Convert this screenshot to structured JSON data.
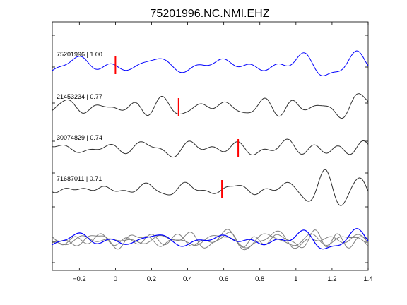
{
  "chart_data": {
    "type": "line",
    "title": "75201996.NC.NMI.EHZ",
    "xlabel": "",
    "ylabel": "",
    "xlim": [
      -0.35,
      1.4
    ],
    "xticks": [
      -0.2,
      0,
      0.2,
      0.4,
      0.6,
      0.8,
      1,
      1.2,
      1.4
    ],
    "xtick_labels": [
      "−0.2",
      "0",
      "0.2",
      "0.4",
      "0.6",
      "0.8",
      "1",
      "1.2",
      "1.4"
    ],
    "grid": false,
    "legend": "none",
    "colors": {
      "primary_trace": "#0000ff",
      "other_trace": "#303030",
      "stack_gray": "#808080",
      "pick_marker": "#ff0000",
      "axes": "#000000"
    },
    "series": [
      {
        "label": "75201996 | 1.00",
        "pick_time": 0.0,
        "color": "blue"
      },
      {
        "label": "21453234 | 0.77",
        "pick_time": 0.35,
        "color": "black"
      },
      {
        "label": "30074829 | 0.74",
        "pick_time": 0.68,
        "color": "black"
      },
      {
        "label": "71687011 | 0.71",
        "pick_time": 0.59,
        "color": "black"
      }
    ],
    "overlay": {
      "description_count": 4,
      "highlight_color": "blue"
    }
  }
}
